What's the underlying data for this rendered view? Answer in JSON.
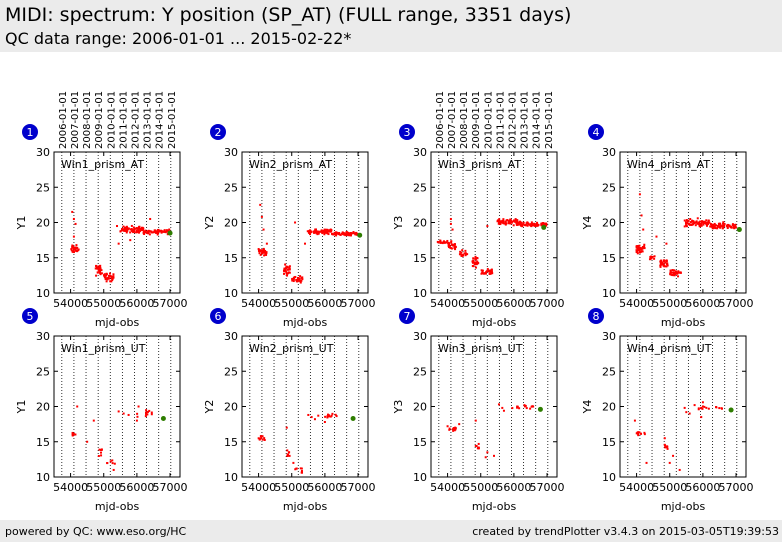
{
  "header": {
    "title": "MIDI: spectrum: Y position (SP_AT) (FULL range, 3351 days)",
    "subtitle": "QC data range: 2006-01-01 ... 2015-02-22*"
  },
  "footer": {
    "left": "powered by QC: www.eso.org/HC",
    "right": "created by trendPlotter v3.4.3 on 2015-03-05T19:39:53"
  },
  "colors": {
    "data": "#ff0000",
    "last_point": "#2e7d00",
    "badge": "#0000cc",
    "header_bg": "#ebebeb"
  },
  "chart_data": {
    "type": "scatter",
    "date_axis": {
      "labels": [
        "2006-01-01",
        "2007-01-01",
        "2008-01-01",
        "2009-01-01",
        "2010-01-01",
        "2011-01-01",
        "2012-01-01",
        "2013-01-01",
        "2014-01-01",
        "2015-01-01"
      ],
      "mjd": [
        53736,
        54101,
        54466,
        54832,
        55197,
        55562,
        55927,
        56293,
        56658,
        57023
      ]
    },
    "xlabel": "mjd-obs",
    "xlim": [
      53500,
      57300
    ],
    "xticks": [
      54000,
      55000,
      56000,
      57000
    ],
    "ylim": [
      10,
      30
    ],
    "yticks": [
      10,
      15,
      20,
      25,
      30
    ],
    "grid": "vertical dotted at date ticks",
    "panels": [
      {
        "num": "1",
        "name": "Win1_prism_AT",
        "ylabel": "Y1",
        "last": [
          57000,
          18.5
        ],
        "show_dates": true,
        "segments": [
          [
            54000,
            54250,
            16.2,
            0.5,
            30
          ],
          [
            54750,
            54950,
            13.3,
            0.7,
            30
          ],
          [
            55000,
            55300,
            12.2,
            0.5,
            30
          ],
          [
            55500,
            56200,
            19.0,
            0.4,
            70
          ],
          [
            56200,
            57000,
            18.7,
            0.3,
            70
          ]
        ],
        "points": [
          [
            54050,
            21.5
          ],
          [
            54100,
            20.5
          ],
          [
            54150,
            19.8
          ],
          [
            54100,
            18.0
          ],
          [
            55400,
            19.5
          ],
          [
            55450,
            17.0
          ],
          [
            56400,
            20.5
          ],
          [
            55800,
            17.5
          ]
        ]
      },
      {
        "num": "2",
        "name": "Win2_prism_AT",
        "ylabel": "Y2",
        "last": [
          57050,
          18.2
        ],
        "show_dates": false,
        "segments": [
          [
            54000,
            54250,
            15.8,
            0.5,
            30
          ],
          [
            54750,
            54950,
            13.3,
            0.6,
            30
          ],
          [
            55000,
            55350,
            12.0,
            0.4,
            30
          ],
          [
            55450,
            56200,
            18.7,
            0.3,
            70
          ],
          [
            56200,
            57000,
            18.4,
            0.2,
            70
          ]
        ],
        "points": [
          [
            54050,
            22.5
          ],
          [
            54100,
            20.8
          ],
          [
            54150,
            19.0
          ],
          [
            55100,
            20.0
          ],
          [
            54250,
            17.0
          ],
          [
            55400,
            17.0
          ]
        ]
      },
      {
        "num": "3",
        "name": "Win3_prism_AT",
        "ylabel": "Y3",
        "last": [
          56900,
          19.3
        ],
        "show_dates": true,
        "segments": [
          [
            53700,
            54000,
            17.2,
            0.2,
            15
          ],
          [
            54000,
            54250,
            16.8,
            0.5,
            30
          ],
          [
            54350,
            54600,
            15.5,
            0.5,
            15
          ],
          [
            54750,
            54950,
            14.3,
            0.6,
            30
          ],
          [
            55000,
            55350,
            13.0,
            0.4,
            30
          ],
          [
            55500,
            56200,
            20.0,
            0.4,
            70
          ],
          [
            56200,
            57000,
            19.7,
            0.3,
            70
          ]
        ],
        "points": [
          [
            54100,
            20.5
          ],
          [
            54150,
            19.0
          ],
          [
            55200,
            19.5
          ],
          [
            54100,
            19.8
          ]
        ]
      },
      {
        "num": "4",
        "name": "Win4_prism_AT",
        "ylabel": "Y4",
        "last": [
          57100,
          19.0
        ],
        "show_dates": false,
        "segments": [
          [
            53950,
            54250,
            16.2,
            0.6,
            35
          ],
          [
            54400,
            54550,
            15.0,
            0.4,
            10
          ],
          [
            54700,
            54950,
            14.2,
            0.5,
            30
          ],
          [
            55000,
            55350,
            12.8,
            0.4,
            30
          ],
          [
            55450,
            56200,
            19.9,
            0.5,
            70
          ],
          [
            56200,
            57000,
            19.5,
            0.4,
            70
          ]
        ],
        "points": [
          [
            54100,
            24.0
          ],
          [
            54150,
            21.0
          ],
          [
            54200,
            19.0
          ],
          [
            54900,
            17.0
          ],
          [
            54600,
            18.0
          ]
        ]
      },
      {
        "num": "5",
        "name": "Win1_prism_UT",
        "ylabel": "Y1",
        "last": [
          56800,
          18.3
        ],
        "show_dates": false,
        "segments": [
          [
            54050,
            54200,
            16.2,
            0.3,
            6
          ],
          [
            54850,
            54950,
            13.6,
            0.6,
            8
          ],
          [
            55100,
            55350,
            12.0,
            0.3,
            6
          ],
          [
            55950,
            56500,
            19.0,
            0.4,
            12
          ]
        ],
        "points": [
          [
            54200,
            20.0
          ],
          [
            54500,
            15.0
          ],
          [
            54700,
            18.0
          ],
          [
            55300,
            11.0
          ],
          [
            55450,
            19.3
          ],
          [
            55600,
            19.0
          ],
          [
            55750,
            18.8
          ],
          [
            56050,
            20.0
          ],
          [
            56000,
            18.0
          ],
          [
            56450,
            18.9
          ]
        ]
      },
      {
        "num": "6",
        "name": "Win2_prism_UT",
        "ylabel": "Y2",
        "last": [
          56850,
          18.3
        ],
        "show_dates": false,
        "segments": [
          [
            54000,
            54200,
            15.5,
            0.3,
            10
          ],
          [
            54850,
            54950,
            13.2,
            0.5,
            8
          ],
          [
            55100,
            55350,
            11.0,
            0.4,
            8
          ],
          [
            55950,
            56500,
            18.7,
            0.3,
            12
          ]
        ],
        "points": [
          [
            54850,
            17.0
          ],
          [
            55050,
            12.0
          ],
          [
            55500,
            18.8
          ],
          [
            55600,
            18.5
          ],
          [
            55700,
            18.2
          ],
          [
            55800,
            18.7
          ],
          [
            56000,
            17.8
          ]
        ]
      },
      {
        "num": "7",
        "name": "Win3_prism_UT",
        "ylabel": "Y3",
        "last": [
          56800,
          19.6
        ],
        "show_dates": false,
        "segments": [
          [
            54050,
            54250,
            16.8,
            0.3,
            10
          ],
          [
            54850,
            54950,
            14.3,
            0.4,
            8
          ],
          [
            55800,
            56600,
            20.0,
            0.3,
            14
          ]
        ],
        "points": [
          [
            54000,
            17.2
          ],
          [
            54350,
            17.5
          ],
          [
            54850,
            18.0
          ],
          [
            55150,
            12.8
          ],
          [
            55200,
            13.5
          ],
          [
            55400,
            13.0
          ],
          [
            55550,
            20.3
          ],
          [
            55650,
            19.8
          ],
          [
            55700,
            19.4
          ]
        ]
      },
      {
        "num": "8",
        "name": "Win4_prism_UT",
        "ylabel": "Y4",
        "last": [
          56850,
          19.5
        ],
        "show_dates": false,
        "segments": [
          [
            54000,
            54250,
            16.3,
            0.4,
            10
          ],
          [
            54850,
            54950,
            14.3,
            0.4,
            8
          ],
          [
            55850,
            56600,
            19.8,
            0.3,
            14
          ]
        ],
        "points": [
          [
            53950,
            18.0
          ],
          [
            54300,
            12.0
          ],
          [
            54850,
            15.5
          ],
          [
            55000,
            12.0
          ],
          [
            55100,
            13.0
          ],
          [
            55300,
            11.0
          ],
          [
            55450,
            19.8
          ],
          [
            55500,
            19.2
          ],
          [
            55600,
            19.0
          ],
          [
            55750,
            20.2
          ],
          [
            56000,
            20.6
          ],
          [
            55950,
            18.5
          ]
        ]
      }
    ]
  }
}
